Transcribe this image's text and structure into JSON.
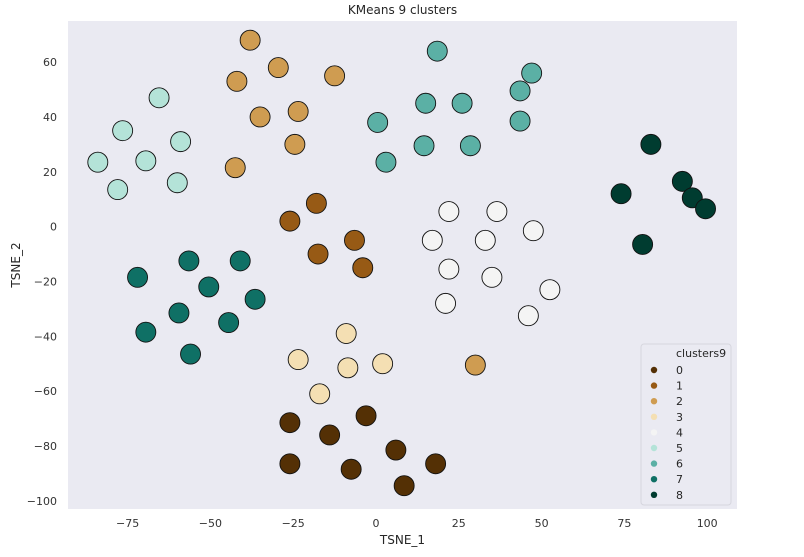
{
  "chart_data": {
    "type": "scatter",
    "title": "KMeans 9 clusters",
    "xlabel": "TSNE_1",
    "ylabel": "TSNE_2",
    "xlim": [
      -93,
      109
    ],
    "ylim": [
      -103,
      75
    ],
    "xticks": [
      -75,
      -50,
      -25,
      0,
      25,
      50,
      75,
      100
    ],
    "yticks": [
      -100,
      -80,
      -60,
      -40,
      -20,
      0,
      20,
      40,
      60
    ],
    "xtick_labels": [
      "−75",
      "−50",
      "−25",
      "0",
      "25",
      "50",
      "75",
      "100"
    ],
    "ytick_labels": [
      "−100",
      "−80",
      "−60",
      "−40",
      "−20",
      "0",
      "20",
      "40",
      "60"
    ],
    "grid": false,
    "background": "#eaeaf2",
    "legend": {
      "title": "clusters9",
      "position": "lower-right"
    },
    "series": [
      {
        "name": "0",
        "color": "#543005",
        "points": [
          [
            -26,
            -71.5
          ],
          [
            -14,
            -76
          ],
          [
            -3,
            -69
          ],
          [
            6,
            -81.5
          ],
          [
            18,
            -86.5
          ],
          [
            -26,
            -86.5
          ],
          [
            -7.5,
            -88.5
          ],
          [
            8.5,
            -94.5
          ]
        ]
      },
      {
        "name": "1",
        "color": "#975a15",
        "points": [
          [
            -18,
            8.5
          ],
          [
            -26,
            2
          ],
          [
            -6.5,
            -5
          ],
          [
            -17.5,
            -10
          ],
          [
            -4,
            -15
          ]
        ]
      },
      {
        "name": "2",
        "color": "#cf9c51",
        "points": [
          [
            -38,
            68
          ],
          [
            -29.5,
            58
          ],
          [
            -42,
            53
          ],
          [
            -12.5,
            55
          ],
          [
            -35,
            40
          ],
          [
            -23.5,
            42
          ],
          [
            -24.5,
            30
          ],
          [
            -42.5,
            21.5
          ],
          [
            30,
            -50.5
          ]
        ]
      },
      {
        "name": "3",
        "color": "#f4dfb3",
        "points": [
          [
            -9,
            -39
          ],
          [
            -23.5,
            -48.5
          ],
          [
            -8.5,
            -51.5
          ],
          [
            2,
            -50
          ],
          [
            -17,
            -61
          ]
        ]
      },
      {
        "name": "4",
        "color": "#f4f4f4",
        "points": [
          [
            22,
            5.5
          ],
          [
            36.5,
            5.5
          ],
          [
            47.5,
            -1.5
          ],
          [
            17,
            -5
          ],
          [
            33,
            -5
          ],
          [
            22,
            -15.5
          ],
          [
            35,
            -18.5
          ],
          [
            52.5,
            -23
          ],
          [
            21,
            -28
          ],
          [
            46,
            -32.5
          ]
        ]
      },
      {
        "name": "5",
        "color": "#b4e3d8",
        "points": [
          [
            -65.5,
            47
          ],
          [
            -76.5,
            35
          ],
          [
            -84,
            23.5
          ],
          [
            -69.5,
            24
          ],
          [
            -59,
            31
          ],
          [
            -60,
            16
          ],
          [
            -78,
            13.5
          ]
        ]
      },
      {
        "name": "6",
        "color": "#5bb0a5",
        "points": [
          [
            18.5,
            64
          ],
          [
            47,
            56
          ],
          [
            15,
            45
          ],
          [
            26,
            45
          ],
          [
            43.5,
            49.5
          ],
          [
            0.5,
            38
          ],
          [
            43.5,
            38.5
          ],
          [
            3,
            23.5
          ],
          [
            14.5,
            29.5
          ],
          [
            28.5,
            29.5
          ]
        ]
      },
      {
        "name": "7",
        "color": "#0f7065",
        "points": [
          [
            -72,
            -18.5
          ],
          [
            -56.5,
            -12.5
          ],
          [
            -41,
            -12.5
          ],
          [
            -50.5,
            -22
          ],
          [
            -36.5,
            -26.5
          ],
          [
            -59.5,
            -31.5
          ],
          [
            -44.5,
            -35
          ],
          [
            -69.5,
            -38.5
          ],
          [
            -56,
            -46.5
          ]
        ]
      },
      {
        "name": "8",
        "color": "#003c30",
        "points": [
          [
            83,
            30
          ],
          [
            74,
            12
          ],
          [
            92.5,
            16.5
          ],
          [
            95.5,
            10.5
          ],
          [
            99.5,
            6.5
          ],
          [
            80.5,
            -6.5
          ]
        ]
      }
    ]
  }
}
